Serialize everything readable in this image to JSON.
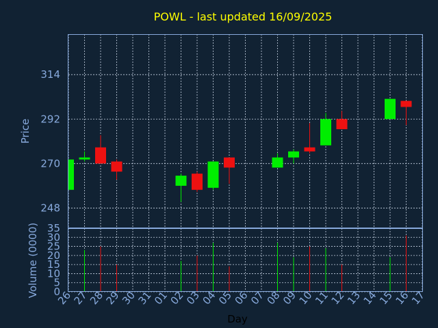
{
  "title": "POWL - last updated 16/09/2025",
  "colors": {
    "background": "#112233",
    "up": "#00ee00",
    "down": "#ee1111",
    "axis": "#88aadd",
    "title": "#ffff00"
  },
  "chart_data": {
    "type": "candlestick",
    "title": "POWL - last updated 16/09/2025",
    "xlabel": "Day",
    "ylabel_price": "Price",
    "ylabel_volume": "Volume (0000)",
    "grid": true,
    "x_ticks": [
      "26",
      "27",
      "28",
      "29",
      "30",
      "31",
      "01",
      "02",
      "03",
      "04",
      "05",
      "06",
      "07",
      "08",
      "09",
      "10",
      "11",
      "12",
      "13",
      "14",
      "15",
      "16",
      "17"
    ],
    "price_ticks": [
      248,
      270,
      292,
      314
    ],
    "price_ylim": [
      238,
      334
    ],
    "volume_ticks": [
      0,
      5,
      10,
      15,
      20,
      25,
      30,
      35
    ],
    "volume_ylim": [
      0,
      35
    ],
    "candles": [
      {
        "day": "26",
        "open": 257,
        "high": 272,
        "low": 257,
        "close": 272,
        "volume": 0
      },
      {
        "day": "27",
        "open": 272,
        "high": 276,
        "low": 271,
        "close": 273,
        "volume": 23
      },
      {
        "day": "28",
        "open": 278,
        "high": 284,
        "low": 270,
        "close": 270,
        "volume": 25
      },
      {
        "day": "29",
        "open": 271,
        "high": 272,
        "low": 262,
        "close": 266,
        "volume": 15
      },
      {
        "day": "02",
        "open": 259,
        "high": 265,
        "low": 251,
        "close": 264,
        "volume": 17
      },
      {
        "day": "03",
        "open": 265,
        "high": 266,
        "low": 256,
        "close": 257,
        "volume": 20
      },
      {
        "day": "04",
        "open": 258,
        "high": 271,
        "low": 257,
        "close": 271,
        "volume": 27
      },
      {
        "day": "05",
        "open": 273,
        "high": 273,
        "low": 260,
        "close": 268,
        "volume": 14
      },
      {
        "day": "08",
        "open": 268,
        "high": 275,
        "low": 268,
        "close": 273,
        "volume": 27
      },
      {
        "day": "09",
        "open": 273,
        "high": 277,
        "low": 270,
        "close": 276,
        "volume": 19
      },
      {
        "day": "10",
        "open": 278,
        "high": 290,
        "low": 275,
        "close": 276,
        "volume": 25
      },
      {
        "day": "11",
        "open": 279,
        "high": 295,
        "low": 279,
        "close": 292,
        "volume": 24
      },
      {
        "day": "12",
        "open": 292,
        "high": 296,
        "low": 287,
        "close": 287,
        "volume": 15
      },
      {
        "day": "15",
        "open": 292,
        "high": 302,
        "low": 292,
        "close": 302,
        "volume": 19
      },
      {
        "day": "16",
        "open": 301,
        "high": 301,
        "low": 289,
        "close": 298,
        "volume": 31
      }
    ]
  }
}
